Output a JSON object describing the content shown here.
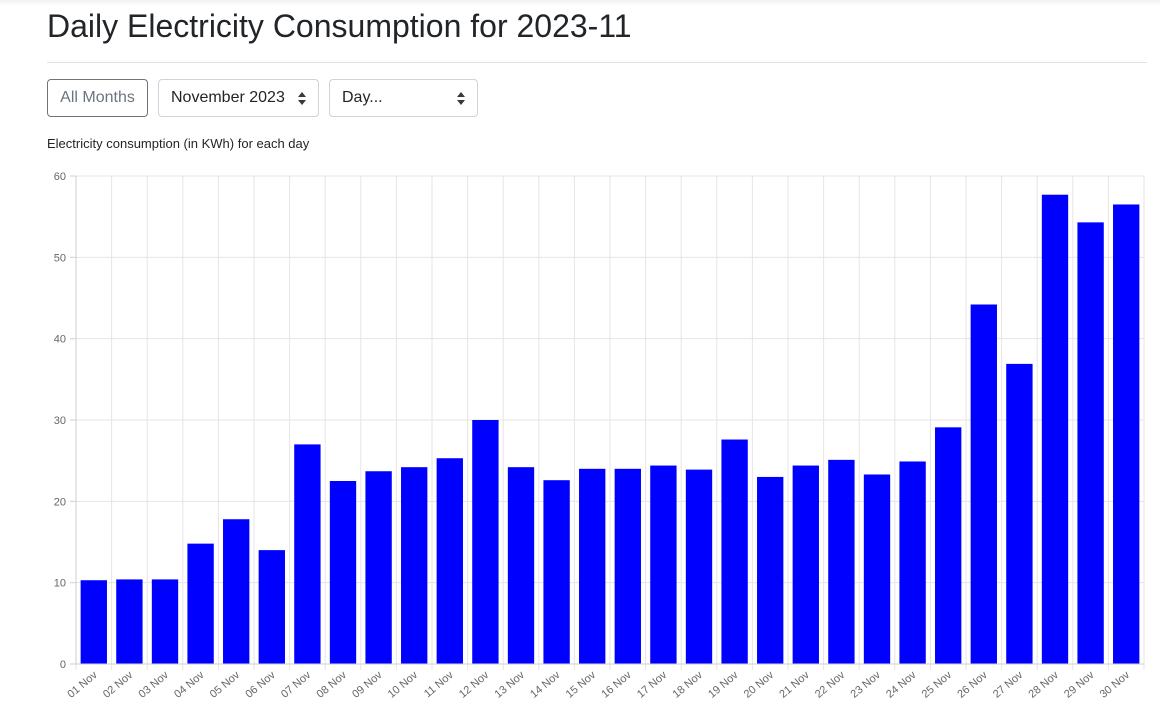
{
  "header": {
    "title": "Daily Electricity Consumption for 2023-11"
  },
  "controls": {
    "all_months_label": "All Months",
    "month_select_value": "November 2023",
    "day_select_value": "Day..."
  },
  "chart_caption": "Electricity consumption (in KWh) for each day",
  "chart_data": {
    "type": "bar",
    "categories": [
      "01 Nov",
      "02 Nov",
      "03 Nov",
      "04 Nov",
      "05 Nov",
      "06 Nov",
      "07 Nov",
      "08 Nov",
      "09 Nov",
      "10 Nov",
      "11 Nov",
      "12 Nov",
      "13 Nov",
      "14 Nov",
      "15 Nov",
      "16 Nov",
      "17 Nov",
      "18 Nov",
      "19 Nov",
      "20 Nov",
      "21 Nov",
      "22 Nov",
      "23 Nov",
      "24 Nov",
      "25 Nov",
      "26 Nov",
      "27 Nov",
      "28 Nov",
      "29 Nov",
      "30 Nov"
    ],
    "values": [
      10.3,
      10.4,
      10.4,
      14.8,
      17.8,
      14.0,
      27.0,
      22.5,
      23.7,
      24.2,
      25.3,
      30.0,
      24.2,
      22.6,
      24.0,
      24.0,
      24.4,
      23.9,
      27.6,
      23.0,
      24.4,
      25.1,
      23.3,
      24.9,
      29.1,
      44.2,
      36.9,
      57.7,
      54.3,
      56.5
    ],
    "y_ticks": [
      0,
      10,
      20,
      30,
      40,
      50,
      60
    ],
    "ylim": [
      0,
      60
    ],
    "title": "",
    "xlabel": "",
    "ylabel": "",
    "grid": true,
    "bar_color": "#0000ff"
  }
}
